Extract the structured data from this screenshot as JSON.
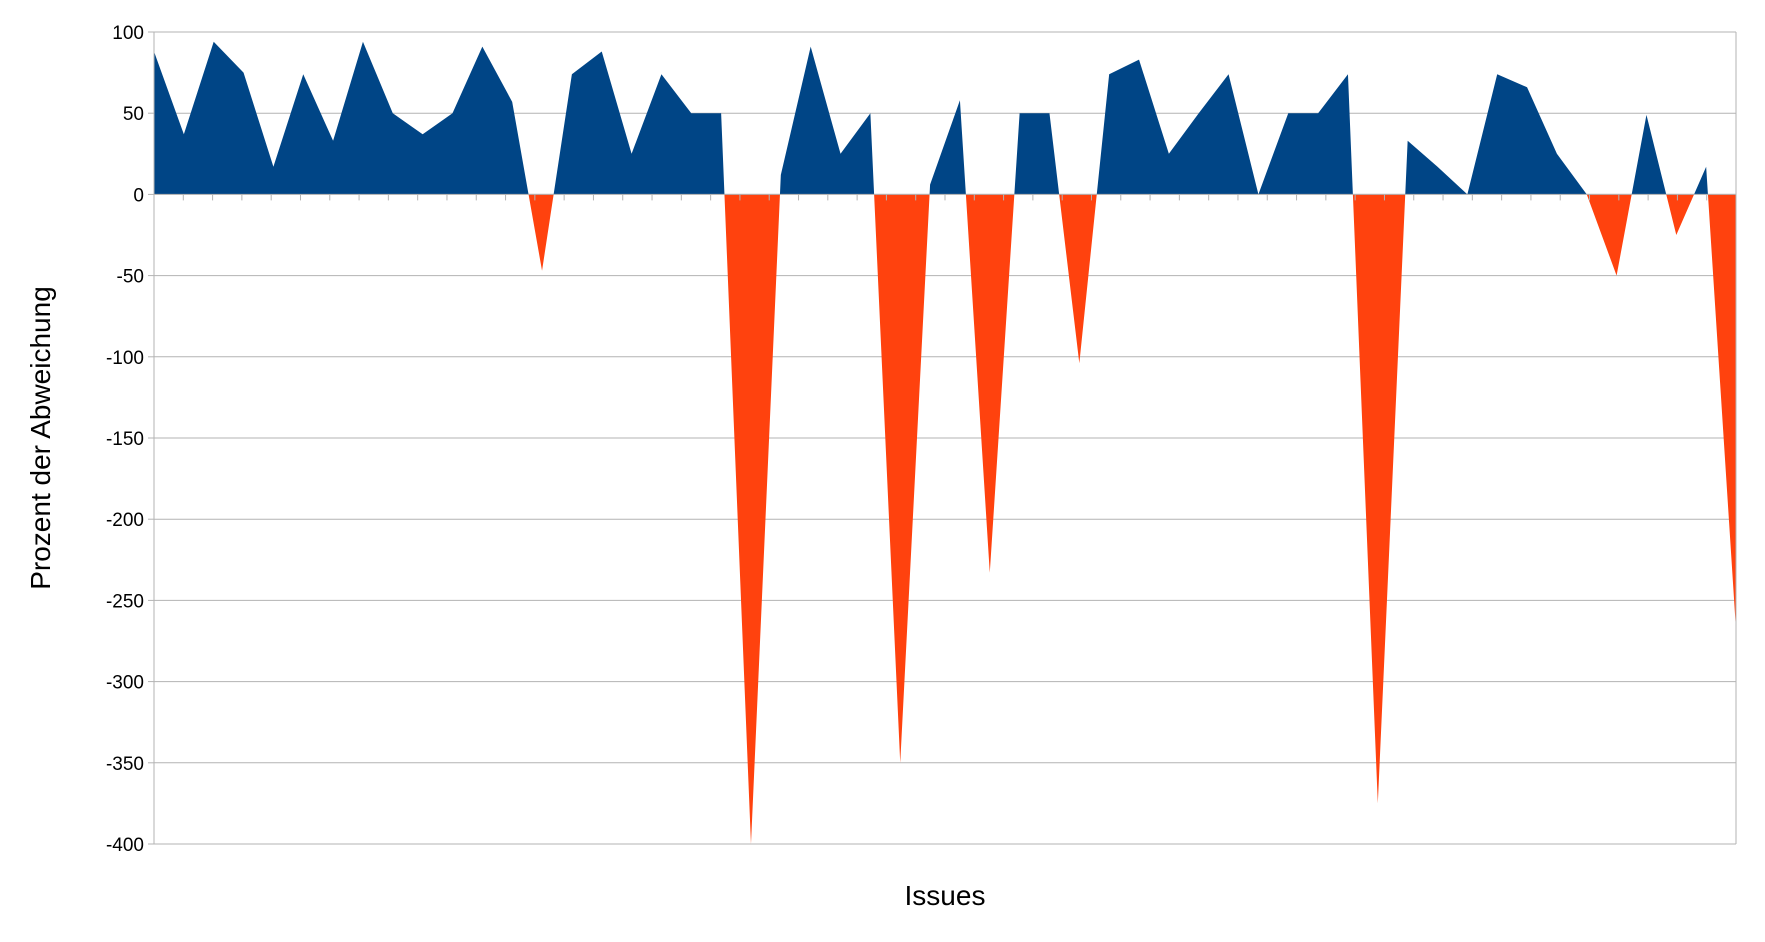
{
  "chart_data": {
    "type": "area",
    "title": "",
    "xlabel": "Issues",
    "ylabel": "Prozent der Abweichung",
    "ylim": [
      -400,
      100
    ],
    "yticks": [
      100,
      50,
      0,
      -50,
      -100,
      -150,
      -200,
      -250,
      -300,
      -350,
      -400
    ],
    "grid": true,
    "legend": "none",
    "colors": {
      "positive": "#004586",
      "negative": "#ff420e",
      "grid": "#b3b3b3",
      "axis": "#b3b3b3"
    },
    "values": [
      88,
      37,
      94,
      75,
      17,
      74,
      33,
      94,
      50,
      37,
      50,
      91,
      57,
      -47,
      74,
      88,
      25,
      74,
      50,
      50,
      -400,
      12,
      91,
      25,
      50,
      -350,
      6,
      58,
      -233,
      50,
      50,
      -104,
      74,
      83,
      25,
      50,
      74,
      0,
      50,
      50,
      74,
      -375,
      33,
      17,
      0,
      74,
      66,
      25,
      0,
      -50,
      49,
      -25,
      17,
      -268
    ]
  }
}
